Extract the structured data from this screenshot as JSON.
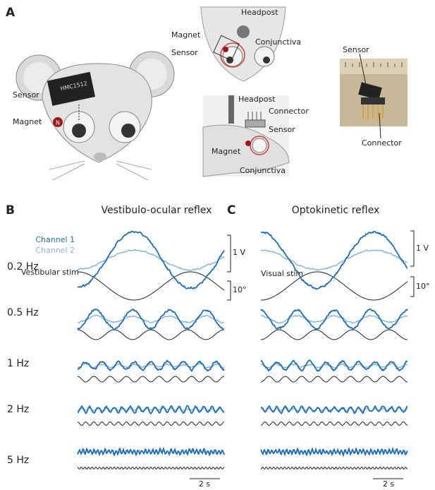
{
  "panel_a": {
    "label": "A",
    "mouse": {
      "sensor": "Sensor",
      "magnet": "Magnet",
      "magnet_pole": "N",
      "chip": "HMC1512"
    },
    "top_view": {
      "headpost": "Headpost",
      "magnet": "Magnet",
      "sensor": "Sensor",
      "conjunctiva": "Conjunctiva"
    },
    "side_view": {
      "headpost": "Headpost",
      "connector": "Connector",
      "sensor": "Sensor",
      "magnet": "Magnet",
      "conjunctiva": "Conjunctiva"
    },
    "photo": {
      "sensor": "Sensor",
      "connector": "Connector"
    }
  },
  "panel_b": {
    "label": "B",
    "title": "Vestibulo-ocular reflex",
    "legend": [
      "Channel 1",
      "Channel 2"
    ],
    "stim_label": "Vestibular stim",
    "voltage_scale": "1 V",
    "angle_scale": "10°",
    "time_scale": "2 s"
  },
  "panel_c": {
    "label": "C",
    "title": "Optokinetic reflex",
    "stim_label": "Visual stim",
    "voltage_scale": "1 V",
    "angle_scale": "10°",
    "time_scale": "2 s"
  },
  "rows": [
    "0.2 Hz",
    "0.5 Hz",
    "1 Hz",
    "2 Hz",
    "5 Hz"
  ]
}
